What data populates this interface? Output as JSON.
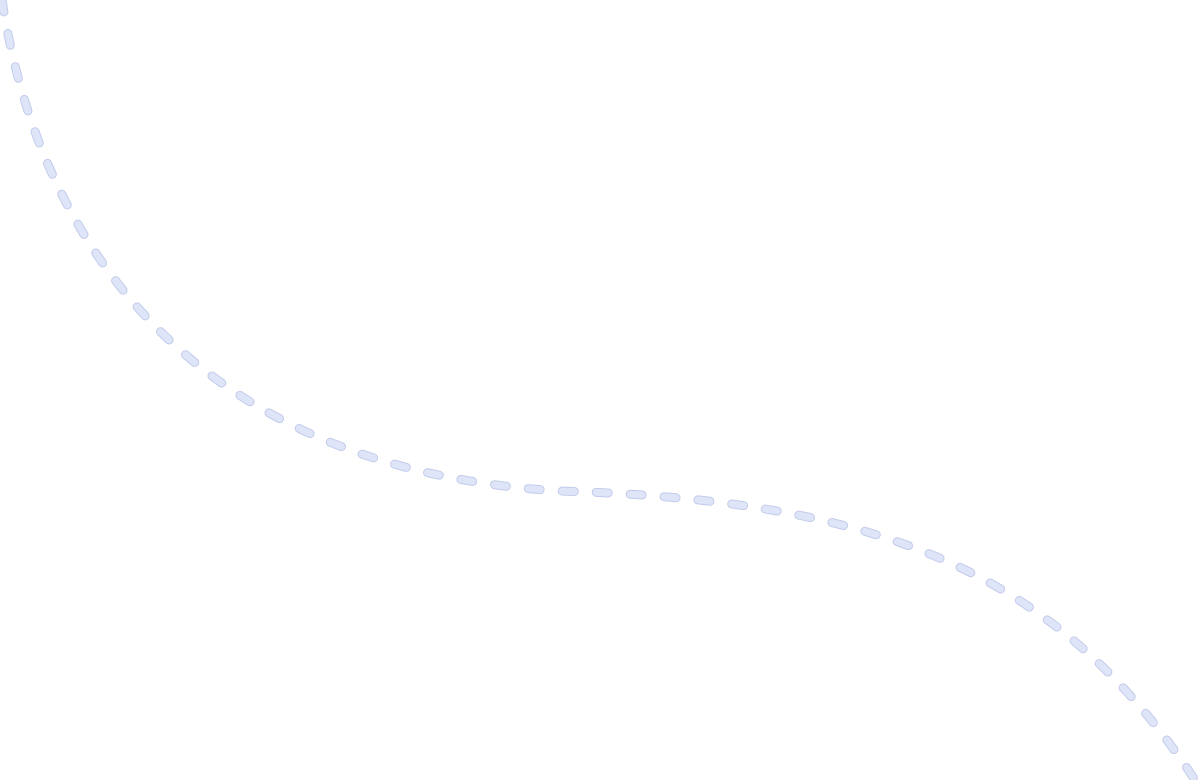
{
  "background_color": "#ffffff",
  "curve": {
    "style": "dashed",
    "fill_color": "#dfe5f8",
    "outline_color": "#c3cbeb"
  }
}
